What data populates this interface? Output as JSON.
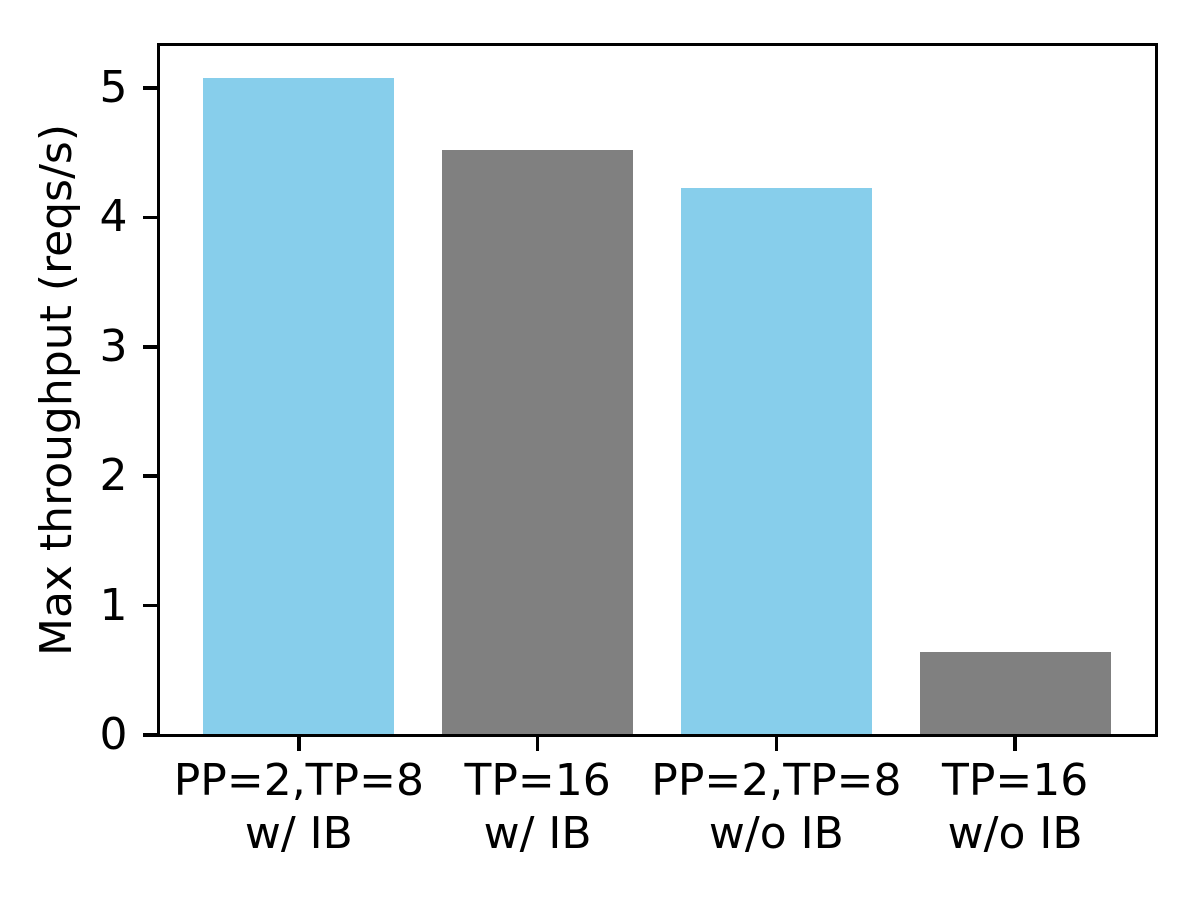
{
  "chart_data": {
    "type": "bar",
    "title": "",
    "xlabel": "",
    "ylabel": "Max throughput (reqs/s)",
    "categories": [
      "PP=2,TP=8\nw/ IB",
      "TP=16\nw/ IB",
      "PP=2,TP=8\nw/o IB",
      "TP=16\nw/o IB"
    ],
    "values": [
      5.08,
      4.52,
      4.23,
      0.64
    ],
    "bar_colors": [
      "#87CEEB",
      "#808080",
      "#87CEEB",
      "#808080"
    ],
    "color_legend": {
      "skyblue": "#87CEEB",
      "gray": "#808080",
      "axis": "#000000",
      "background": "#ffffff"
    },
    "yticks": [
      0,
      1,
      2,
      3,
      4,
      5
    ],
    "ytick_labels": [
      "0",
      "1",
      "2",
      "3",
      "4",
      "5"
    ],
    "ylim": [
      0,
      5.34
    ],
    "xlim": [
      -0.59,
      3.59
    ],
    "bar_width": 0.8,
    "grid": false,
    "legend_position": "none"
  }
}
